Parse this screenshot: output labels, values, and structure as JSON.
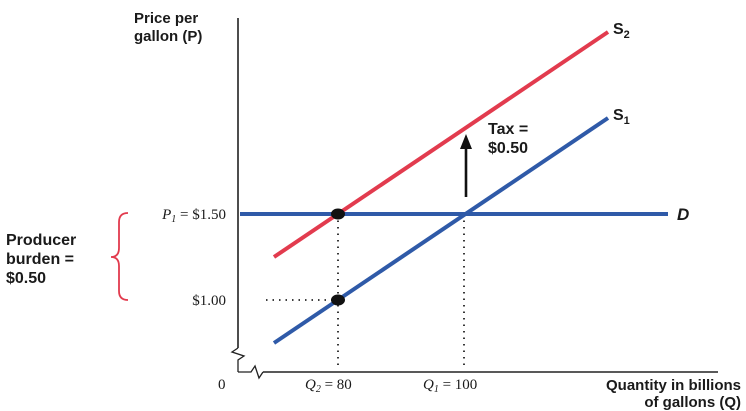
{
  "axes": {
    "y_label_line1": "Price per",
    "y_label_line2": "gallon (P)",
    "x_label_line1": "Quantity in billions",
    "x_label_line2": "of gallons (Q)",
    "origin": "0"
  },
  "curves": {
    "supply_before": {
      "label": "S",
      "subscript": "1",
      "color": "#2f5aa8"
    },
    "supply_after": {
      "label": "S",
      "subscript": "2",
      "color": "#e23b4e"
    },
    "demand": {
      "label": "D",
      "color": "#2f5aa8"
    }
  },
  "tax": {
    "line1": "Tax =",
    "line2": "$0.50"
  },
  "price_labels": {
    "p1_name": "P",
    "p1_sub": "1",
    "p1_value": " = $1.50",
    "p_low": "$1.00"
  },
  "quantity_labels": {
    "q2_name": "Q",
    "q2_sub": "2",
    "q2_value": " = 80",
    "q1_name": "Q",
    "q1_sub": "1",
    "q1_value": " = 100"
  },
  "burden": {
    "line1": "Producer",
    "line2": "burden =",
    "line3": "$0.50",
    "brace_color": "#e23b4e"
  },
  "point_color": "#111111",
  "axis_color": "#222222"
}
